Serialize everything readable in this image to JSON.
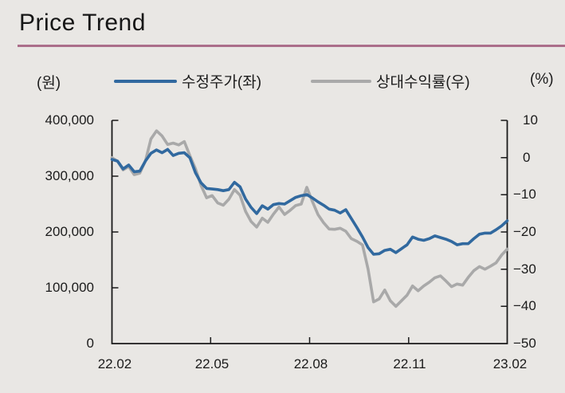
{
  "header": {
    "title": "Price Trend"
  },
  "legend": {
    "left_unit": "(원)",
    "right_unit": "(%)"
  },
  "theme": {
    "background": "#e9e7e4",
    "text": "#1a1a1a",
    "accent_rule": "#ab6e8a",
    "axis": "#1a1a1a"
  },
  "chart_data": {
    "type": "line",
    "title": "Price Trend",
    "grid": false,
    "x_tick_labels": [
      "22.02",
      "22.05",
      "22.08",
      "22.11",
      "23.02"
    ],
    "left_axis": {
      "label": "(원)",
      "min": 0,
      "max": 400000,
      "tick_labels": [
        "400,000",
        "300,000",
        "200,000",
        "100,000",
        "0"
      ]
    },
    "right_axis": {
      "label": "(%)",
      "min": -50,
      "max": 10,
      "tick_labels": [
        "10",
        "0",
        "−10",
        "−20",
        "−30",
        "−40",
        "−50"
      ]
    },
    "series": [
      {
        "name": "수정주가(좌)",
        "axis": "left",
        "color": "#31699f",
        "values": [
          330000,
          327000,
          313000,
          320000,
          308000,
          309000,
          327000,
          341000,
          347000,
          342000,
          348000,
          337000,
          341000,
          342000,
          333000,
          306000,
          288000,
          278000,
          277000,
          276000,
          274000,
          276000,
          289000,
          281000,
          259000,
          244000,
          233000,
          247000,
          241000,
          249000,
          251000,
          250000,
          256000,
          262000,
          265000,
          267000,
          261000,
          254000,
          248000,
          241000,
          239000,
          234000,
          240000,
          224000,
          208000,
          191000,
          172000,
          160000,
          161000,
          167000,
          169000,
          163000,
          170000,
          177000,
          191000,
          187000,
          185000,
          188000,
          193000,
          190000,
          187000,
          183000,
          177000,
          179000,
          179000,
          188000,
          196000,
          198000,
          198000,
          204000,
          211000,
          220000
        ]
      },
      {
        "name": "상대수익률(우)",
        "axis": "right",
        "color": "#a9a9a9",
        "values": [
          0,
          -1,
          -3.3,
          -2.4,
          -4.6,
          -4.2,
          -1,
          5,
          7.2,
          5.8,
          3.5,
          3.9,
          3.4,
          4.3,
          0.5,
          -3,
          -7.5,
          -10.8,
          -10.2,
          -12.2,
          -12.8,
          -11.2,
          -8.6,
          -10.1,
          -14.5,
          -17.2,
          -18.7,
          -16.3,
          -17.4,
          -15.2,
          -13.3,
          -15.3,
          -14.2,
          -12.9,
          -12.5,
          -8,
          -11.8,
          -15.3,
          -17.5,
          -19.2,
          -19.3,
          -19,
          -19.8,
          -21.8,
          -22.5,
          -23.5,
          -30,
          -38.8,
          -38,
          -35.6,
          -38.5,
          -40,
          -38.5,
          -37,
          -34.5,
          -35.8,
          -34.5,
          -33.5,
          -32.3,
          -31.8,
          -33.2,
          -34.7,
          -34,
          -34.3,
          -32.2,
          -30.4,
          -29.3,
          -30,
          -29.2,
          -28.3,
          -26.2,
          -24.6
        ]
      }
    ]
  }
}
